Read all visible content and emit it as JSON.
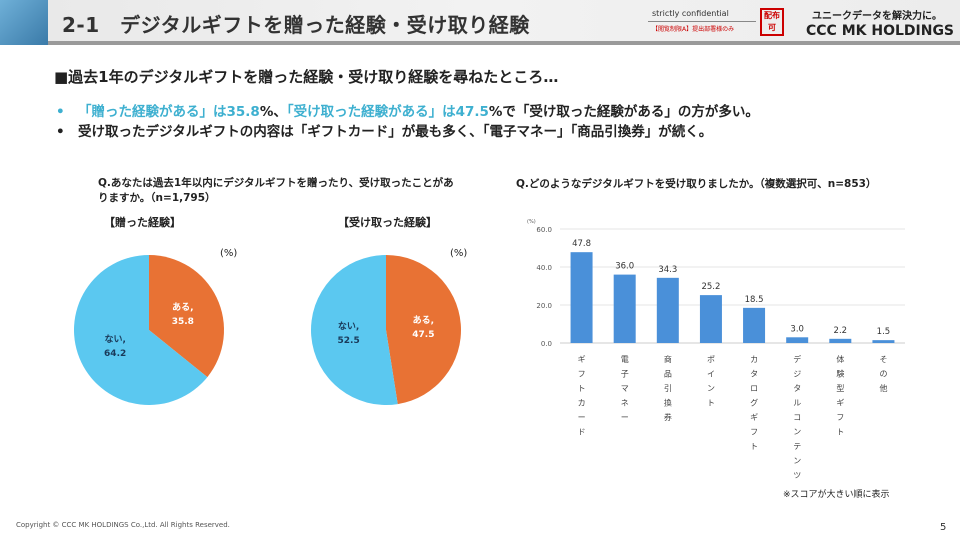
{
  "header": {
    "title": "2-1　デジタルギフトを贈った経験・受け取り経験",
    "confidential": "strictly confidential",
    "restriction": "【閲覧制限A】提出部署様のみ",
    "stamp": "配布可",
    "tagline": "ユニークデータを解決力に。",
    "logo": "CCC MK HOLDINGS"
  },
  "subtitle": "■過去1年のデジタルギフトを贈った経験・受け取り経験を尋ねたところ…",
  "bullets": [
    {
      "bullet": "•",
      "hl1": "「贈った経験がある」は35.8",
      "t1": "%、",
      "hl2": "「受け取った経験がある」は47.5",
      "t2": "%で「受け取った経験がある」の方が多い。"
    },
    {
      "bullet": "•",
      "text": "受け取ったデジタルギフトの内容は「ギフトカード」が最も多く、「電子マネー」「商品引換券」が続く。"
    }
  ],
  "colors": {
    "orange": "#e87234",
    "lightblue": "#5bc8f0",
    "bar": "#4a90d9"
  },
  "chart_data": [
    {
      "type": "pie",
      "question": "Q.あなたは過去1年以内にデジタルギフトを贈ったり、受け取ったことがありますか。（n=1,795）",
      "title": "【贈った経験】",
      "unit": "(%)",
      "slices": [
        {
          "label": "ある,",
          "value": 35.8
        },
        {
          "label": "ない,",
          "value": 64.2
        }
      ]
    },
    {
      "type": "pie",
      "title": "【受け取った経験】",
      "unit": "(%)",
      "slices": [
        {
          "label": "ある,",
          "value": 47.5
        },
        {
          "label": "ない,",
          "value": 52.5
        }
      ]
    },
    {
      "type": "bar",
      "title": "Q.どのようなデジタルギフトを受け取りましたか。（複数選択可、n=853）",
      "ylabel": "(%)",
      "ylim": [
        0,
        60
      ],
      "yticks": [
        "0.0",
        "20.0",
        "40.0",
        "60.0"
      ],
      "categories": [
        "ギフトカード",
        "電子マネー",
        "商品引換券",
        "ポイント",
        "カタログギフト",
        "デジタルコンテンツ",
        "体験型ギフト",
        "その他"
      ],
      "values": [
        47.8,
        36.0,
        34.3,
        25.2,
        18.5,
        3.0,
        2.2,
        1.5
      ],
      "note": "※スコアが大きい順に表示"
    }
  ],
  "footer": {
    "copyright": "Copyright © CCC MK HOLDINGS Co.,Ltd. All Rights Reserved.",
    "page": "5"
  }
}
